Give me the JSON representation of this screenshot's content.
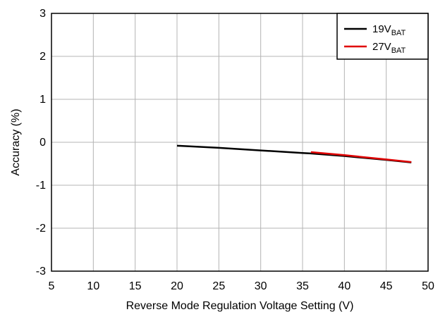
{
  "chart_data": {
    "type": "line",
    "xlabel": "Reverse Mode Regulation Voltage Setting (V)",
    "ylabel": "Accuracy (%)",
    "xlim": [
      5,
      50
    ],
    "ylim": [
      -3,
      3
    ],
    "xticks": [
      5,
      10,
      15,
      20,
      25,
      30,
      35,
      40,
      45,
      50
    ],
    "yticks": [
      -3,
      -2,
      -1,
      0,
      1,
      2,
      3
    ],
    "grid": true,
    "legend_position": "top-right",
    "series": [
      {
        "name": "19V",
        "name_subscript": "BAT",
        "color": "#000000",
        "x": [
          20,
          25,
          30,
          35,
          36,
          40,
          45,
          48
        ],
        "y": [
          -0.08,
          -0.13,
          -0.19,
          -0.25,
          -0.26,
          -0.32,
          -0.41,
          -0.47
        ]
      },
      {
        "name": "27V",
        "name_subscript": "BAT",
        "color": "#e00000",
        "x": [
          36,
          40,
          45,
          48
        ],
        "y": [
          -0.23,
          -0.3,
          -0.4,
          -0.46
        ]
      }
    ]
  }
}
